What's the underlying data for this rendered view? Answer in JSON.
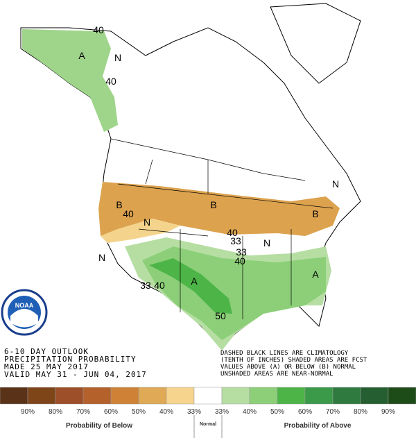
{
  "map": {
    "labels": [
      "A",
      "N",
      "40",
      "40",
      "B",
      "40",
      "N",
      "B",
      "B",
      "N",
      "40",
      "33",
      "N",
      "33",
      "40",
      "N",
      "A",
      "33",
      "40",
      "A",
      "50"
    ]
  },
  "logo": "NOAA",
  "outlook": {
    "lines": [
      "6-10 DAY OUTLOOK",
      "PRECIPITATION PROBABILITY",
      "MADE  25 MAY 2017",
      "VALID  MAY 31 - JUN 04, 2017"
    ],
    "notes": [
      "DASHED BLACK LINES ARE CLIMATOLOGY",
      "(TENTH OF INCHES) SHADED AREAS ARE FCST",
      "VALUES ABOVE (A) OR BELOW (B) NORMAL",
      "UNSHADED AREAS ARE NEAR-NORMAL"
    ]
  },
  "legend": {
    "colors": [
      "#5a3218",
      "#7e4519",
      "#9c4f28",
      "#b4612c",
      "#cf8236",
      "#dfa955",
      "#f6d48e",
      "#ffffff",
      "#b6dea3",
      "#8ccf78",
      "#4db548",
      "#3b9a4a",
      "#2f7b3f",
      "#255f31",
      "#1e4c19"
    ],
    "labels": [
      "90%",
      "80%",
      "70%",
      "60%",
      "50%",
      "40%",
      "33%",
      "33%",
      "40%",
      "50%",
      "60%",
      "70%",
      "80%",
      "90%"
    ],
    "below": "Probability of Below",
    "normal": "Normal",
    "above": "Probability of Above"
  }
}
